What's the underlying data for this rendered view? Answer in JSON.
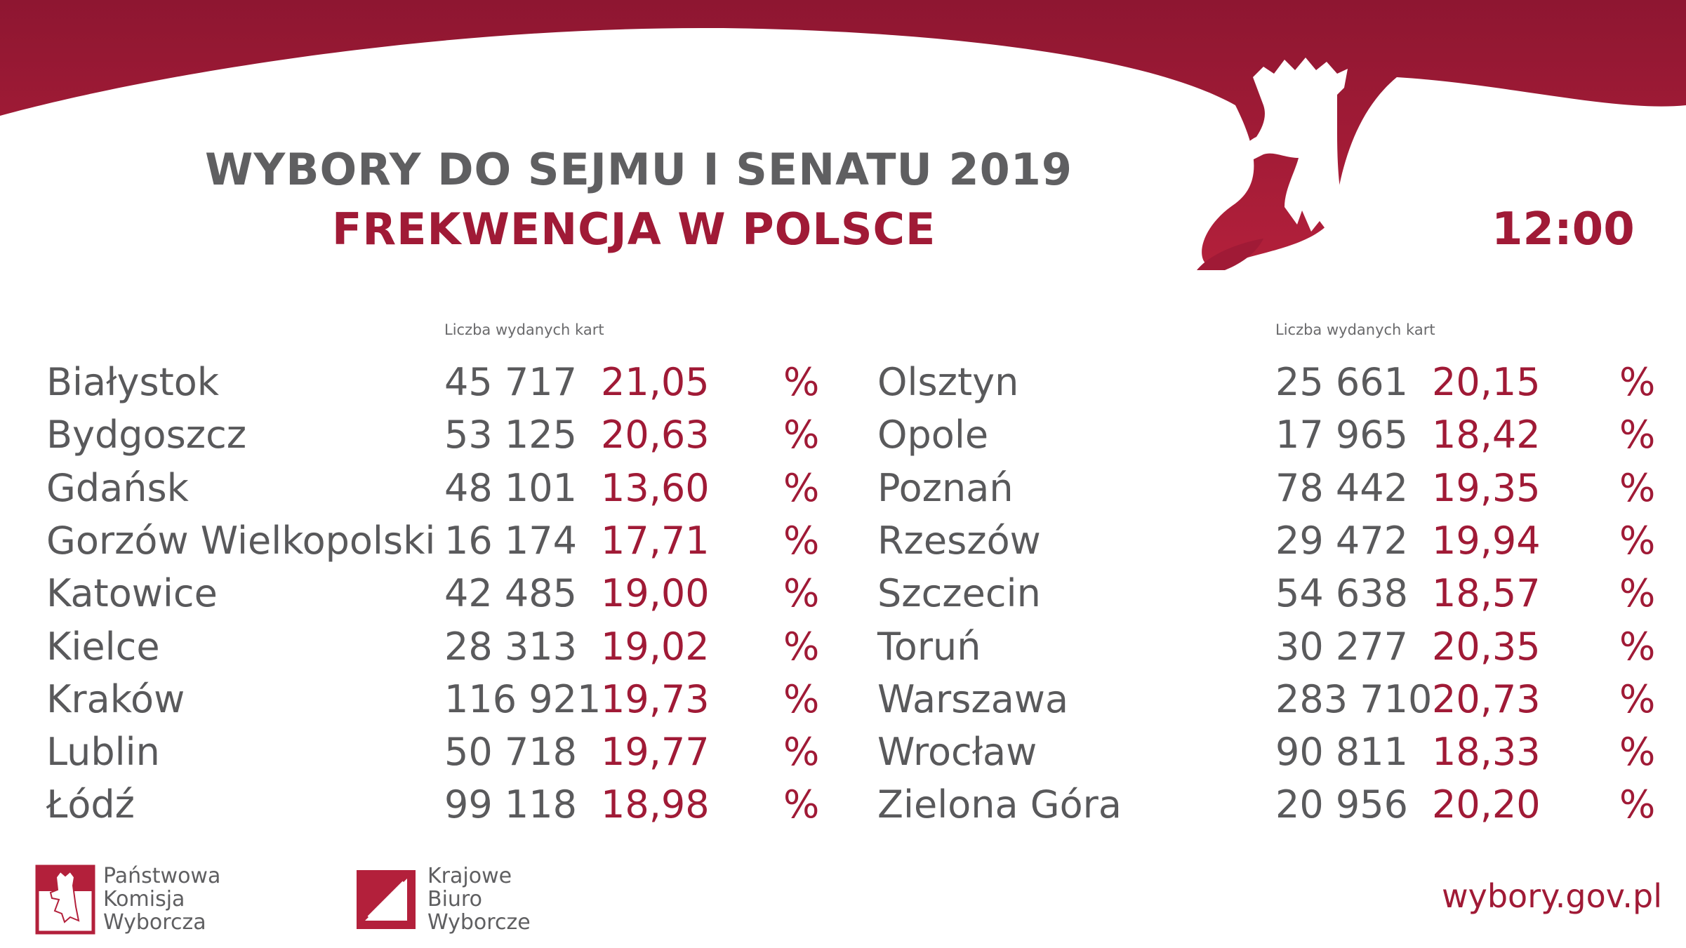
{
  "header": {
    "title": "WYBORY DO SEJMU I SENATU 2019",
    "subtitle": "FREKWENCJA W POLSCE",
    "time": "12:00"
  },
  "colors": {
    "accent": "#a01a36",
    "text": "#5a5a5c",
    "background": "#ffffff"
  },
  "column_caption": "Liczba wydanych kart",
  "left_rows": [
    {
      "city": "Białystok",
      "cards": "45 717",
      "pct": "21,05",
      "unit": "%"
    },
    {
      "city": "Bydgoszcz",
      "cards": "53 125",
      "pct": "20,63",
      "unit": "%"
    },
    {
      "city": "Gdańsk",
      "cards": "48 101",
      "pct": "13,60",
      "unit": "%"
    },
    {
      "city": "Gorzów Wielkopolski",
      "cards": "16 174",
      "pct": "17,71",
      "unit": "%"
    },
    {
      "city": "Katowice",
      "cards": "42 485",
      "pct": "19,00",
      "unit": "%"
    },
    {
      "city": "Kielce",
      "cards": "28 313",
      "pct": "19,02",
      "unit": "%"
    },
    {
      "city": "Kraków",
      "cards": "116 921",
      "pct": "19,73",
      "unit": "%"
    },
    {
      "city": "Lublin",
      "cards": "50 718",
      "pct": "19,77",
      "unit": "%"
    },
    {
      "city": "Łódź",
      "cards": "99 118",
      "pct": "18,98",
      "unit": "%"
    }
  ],
  "right_rows": [
    {
      "city": "Olsztyn",
      "cards": "25 661",
      "pct": "20,15",
      "unit": "%"
    },
    {
      "city": "Opole",
      "cards": "17 965",
      "pct": "18,42",
      "unit": "%"
    },
    {
      "city": "Poznań",
      "cards": "78 442",
      "pct": "19,35",
      "unit": "%"
    },
    {
      "city": "Rzeszów",
      "cards": "29 472",
      "pct": "19,94",
      "unit": "%"
    },
    {
      "city": "Szczecin",
      "cards": "54 638",
      "pct": "18,57",
      "unit": "%"
    },
    {
      "city": "Toruń",
      "cards": "30 277",
      "pct": "20,35",
      "unit": "%"
    },
    {
      "city": "Warszawa",
      "cards": "283 710",
      "pct": "20,73",
      "unit": "%"
    },
    {
      "city": "Wrocław",
      "cards": "90 811",
      "pct": "18,33",
      "unit": "%"
    },
    {
      "city": "Zielona Góra",
      "cards": "20 956",
      "pct": "20,20",
      "unit": "%"
    }
  ],
  "footer": {
    "pkw": [
      "Państwowa",
      "Komisja",
      "Wyborcza"
    ],
    "kbw": [
      "Krajowe",
      "Biuro",
      "Wyborcze"
    ],
    "website": "wybory.gov.pl"
  }
}
